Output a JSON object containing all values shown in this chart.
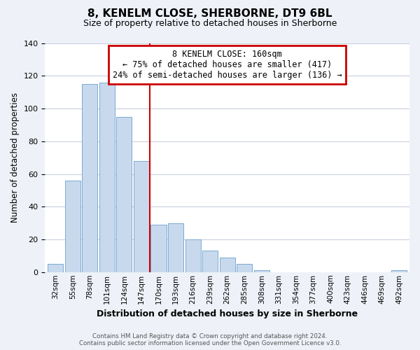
{
  "title": "8, KENELM CLOSE, SHERBORNE, DT9 6BL",
  "subtitle": "Size of property relative to detached houses in Sherborne",
  "xlabel": "Distribution of detached houses by size in Sherborne",
  "ylabel": "Number of detached properties",
  "bar_labels": [
    "32sqm",
    "55sqm",
    "78sqm",
    "101sqm",
    "124sqm",
    "147sqm",
    "170sqm",
    "193sqm",
    "216sqm",
    "239sqm",
    "262sqm",
    "285sqm",
    "308sqm",
    "331sqm",
    "354sqm",
    "377sqm",
    "400sqm",
    "423sqm",
    "446sqm",
    "469sqm",
    "492sqm"
  ],
  "bar_values": [
    5,
    56,
    115,
    116,
    95,
    68,
    29,
    30,
    20,
    13,
    9,
    5,
    1,
    0,
    0,
    0,
    0,
    0,
    0,
    0,
    1
  ],
  "bar_color": "#c8d9ee",
  "bar_edge_color": "#7aaad0",
  "ylim": [
    0,
    140
  ],
  "yticks": [
    0,
    20,
    40,
    60,
    80,
    100,
    120,
    140
  ],
  "vline_x": 5.5,
  "vline_color": "#cc0000",
  "annotation_title": "8 KENELM CLOSE: 160sqm",
  "annotation_line1": "← 75% of detached houses are smaller (417)",
  "annotation_line2": "24% of semi-detached houses are larger (136) →",
  "annotation_box_color": "#ffffff",
  "annotation_box_edge": "#cc0000",
  "footer_line1": "Contains HM Land Registry data © Crown copyright and database right 2024.",
  "footer_line2": "Contains public sector information licensed under the Open Government Licence v3.0.",
  "background_color": "#eef2f8",
  "plot_background": "#ffffff",
  "grid_color": "#c8d0de"
}
